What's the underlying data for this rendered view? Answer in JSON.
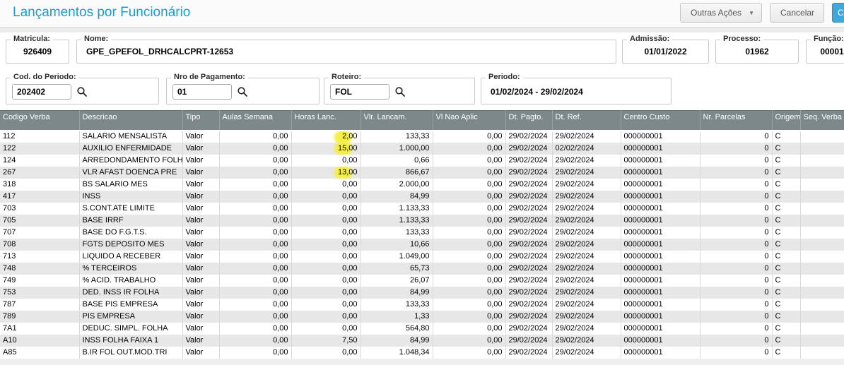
{
  "colors": {
    "accent_title": "#1b9ccd",
    "table_header_bg": "#7c8889",
    "row_alt_bg": "#e7e7e7",
    "highlight_yellow": "#f7ee3c",
    "confirm_button_blue": "#3fa8da"
  },
  "header": {
    "title": "Lançamentos por Funcionário",
    "outras_acoes_label": "Outras Ações",
    "caret_glyph": "▼",
    "cancelar_label": "Cancelar",
    "confirm_partial_label": "C"
  },
  "form": {
    "matricula": {
      "label": "Matricula:",
      "value": "926409"
    },
    "nome": {
      "label": "Nome:",
      "value": "GPE_GPEFOL_DRHCALCPRT-12653"
    },
    "admissao": {
      "label": "Admissão:",
      "value": "01/01/2022"
    },
    "processo": {
      "label": "Processo:",
      "value": "01962"
    },
    "funcao": {
      "label": "Função:",
      "value": "00001"
    },
    "cod_periodo": {
      "label": "Cod. do Periodo:",
      "value": "202402"
    },
    "nro_pagamento": {
      "label": "Nro de Pagamento:",
      "value": "01"
    },
    "roteiro": {
      "label": "Roteiro:",
      "value": "FOL"
    },
    "periodo": {
      "label": "Periodo:",
      "value": "01/02/2024 - 29/02/2024"
    }
  },
  "table": {
    "columns": [
      {
        "label": "Codigo Verba"
      },
      {
        "label": "Descricao"
      },
      {
        "label": "Tipo"
      },
      {
        "label": "Aulas Semana"
      },
      {
        "label": "Horas Lanc."
      },
      {
        "label": "Vlr. Lancam."
      },
      {
        "label": "Vl Nao Aplic"
      },
      {
        "label": "Dt. Pagto."
      },
      {
        "label": "Dt. Ref."
      },
      {
        "label": "Centro Custo"
      },
      {
        "label": "Nr. Parcelas"
      },
      {
        "label": "Origem"
      },
      {
        "label": "Seq. Verba"
      }
    ],
    "rows": [
      {
        "highlight": true,
        "cells": [
          "112",
          "SALARIO MENSALISTA",
          "Valor",
          "0,00",
          "2,00",
          "133,33",
          "0,00",
          "29/02/2024",
          "29/02/2024",
          "000000001",
          "0",
          "C",
          ""
        ]
      },
      {
        "highlight": true,
        "cells": [
          "122",
          "AUXILIO ENFERMIDADE",
          "Valor",
          "0,00",
          "15,00",
          "1.000,00",
          "0,00",
          "29/02/2024",
          "02/02/2024",
          "000000001",
          "0",
          "C",
          ""
        ]
      },
      {
        "highlight": false,
        "cells": [
          "124",
          "ARREDONDAMENTO FOLH",
          "Valor",
          "0,00",
          "0,00",
          "0,66",
          "0,00",
          "29/02/2024",
          "29/02/2024",
          "000000001",
          "0",
          "C",
          ""
        ]
      },
      {
        "highlight": true,
        "cells": [
          "267",
          "VLR AFAST DOENCA PRE",
          "Valor",
          "0,00",
          "13,00",
          "866,67",
          "0,00",
          "29/02/2024",
          "29/02/2024",
          "000000001",
          "0",
          "C",
          ""
        ]
      },
      {
        "highlight": false,
        "cells": [
          "318",
          "BS SALARIO MES",
          "Valor",
          "0,00",
          "0,00",
          "2.000,00",
          "0,00",
          "29/02/2024",
          "29/02/2024",
          "000000001",
          "0",
          "C",
          ""
        ]
      },
      {
        "highlight": false,
        "cells": [
          "417",
          "INSS",
          "Valor",
          "0,00",
          "0,00",
          "84,99",
          "0,00",
          "29/02/2024",
          "29/02/2024",
          "000000001",
          "0",
          "C",
          ""
        ]
      },
      {
        "highlight": false,
        "cells": [
          "703",
          "S.CONT.ATE LIMITE",
          "Valor",
          "0,00",
          "0,00",
          "1.133,33",
          "0,00",
          "29/02/2024",
          "29/02/2024",
          "000000001",
          "0",
          "C",
          ""
        ]
      },
      {
        "highlight": false,
        "cells": [
          "705",
          "BASE IRRF",
          "Valor",
          "0,00",
          "0,00",
          "1.133,33",
          "0,00",
          "29/02/2024",
          "29/02/2024",
          "000000001",
          "0",
          "C",
          ""
        ]
      },
      {
        "highlight": false,
        "cells": [
          "707",
          "BASE DO F.G.T.S.",
          "Valor",
          "0,00",
          "0,00",
          "133,33",
          "0,00",
          "29/02/2024",
          "29/02/2024",
          "000000001",
          "0",
          "C",
          ""
        ]
      },
      {
        "highlight": false,
        "cells": [
          "708",
          "FGTS DEPOSITO MES",
          "Valor",
          "0,00",
          "0,00",
          "10,66",
          "0,00",
          "29/02/2024",
          "29/02/2024",
          "000000001",
          "0",
          "C",
          ""
        ]
      },
      {
        "highlight": false,
        "cells": [
          "713",
          "LIQUIDO A RECEBER",
          "Valor",
          "0,00",
          "0,00",
          "1.049,00",
          "0,00",
          "29/02/2024",
          "29/02/2024",
          "000000001",
          "0",
          "C",
          ""
        ]
      },
      {
        "highlight": false,
        "cells": [
          "748",
          "% TERCEIROS",
          "Valor",
          "0,00",
          "0,00",
          "65,73",
          "0,00",
          "29/02/2024",
          "29/02/2024",
          "000000001",
          "0",
          "C",
          ""
        ]
      },
      {
        "highlight": false,
        "cells": [
          "749",
          "% ACID. TRABALHO",
          "Valor",
          "0,00",
          "0,00",
          "26,07",
          "0,00",
          "29/02/2024",
          "29/02/2024",
          "000000001",
          "0",
          "C",
          ""
        ]
      },
      {
        "highlight": false,
        "cells": [
          "753",
          "DED. INSS IR FOLHA",
          "Valor",
          "0,00",
          "0,00",
          "84,99",
          "0,00",
          "29/02/2024",
          "29/02/2024",
          "000000001",
          "0",
          "C",
          ""
        ]
      },
      {
        "highlight": false,
        "cells": [
          "787",
          "BASE PIS EMPRESA",
          "Valor",
          "0,00",
          "0,00",
          "133,33",
          "0,00",
          "29/02/2024",
          "29/02/2024",
          "000000001",
          "0",
          "C",
          ""
        ]
      },
      {
        "highlight": false,
        "cells": [
          "789",
          "PIS EMPRESA",
          "Valor",
          "0,00",
          "0,00",
          "1,33",
          "0,00",
          "29/02/2024",
          "29/02/2024",
          "000000001",
          "0",
          "C",
          ""
        ]
      },
      {
        "highlight": false,
        "cells": [
          "7A1",
          "DEDUC. SIMPL. FOLHA",
          "Valor",
          "0,00",
          "0,00",
          "564,80",
          "0,00",
          "29/02/2024",
          "29/02/2024",
          "000000001",
          "0",
          "C",
          ""
        ]
      },
      {
        "highlight": false,
        "cells": [
          "A10",
          "INSS FOLHA FAIXA 1",
          "Valor",
          "0,00",
          "7,50",
          "84,99",
          "0,00",
          "29/02/2024",
          "29/02/2024",
          "000000001",
          "0",
          "C",
          ""
        ]
      },
      {
        "highlight": false,
        "cells": [
          "A85",
          "B.IR FOL OUT.MOD.TRI",
          "Valor",
          "0,00",
          "0,00",
          "1.048,34",
          "0,00",
          "29/02/2024",
          "29/02/2024",
          "000000001",
          "0",
          "C",
          ""
        ]
      }
    ]
  }
}
